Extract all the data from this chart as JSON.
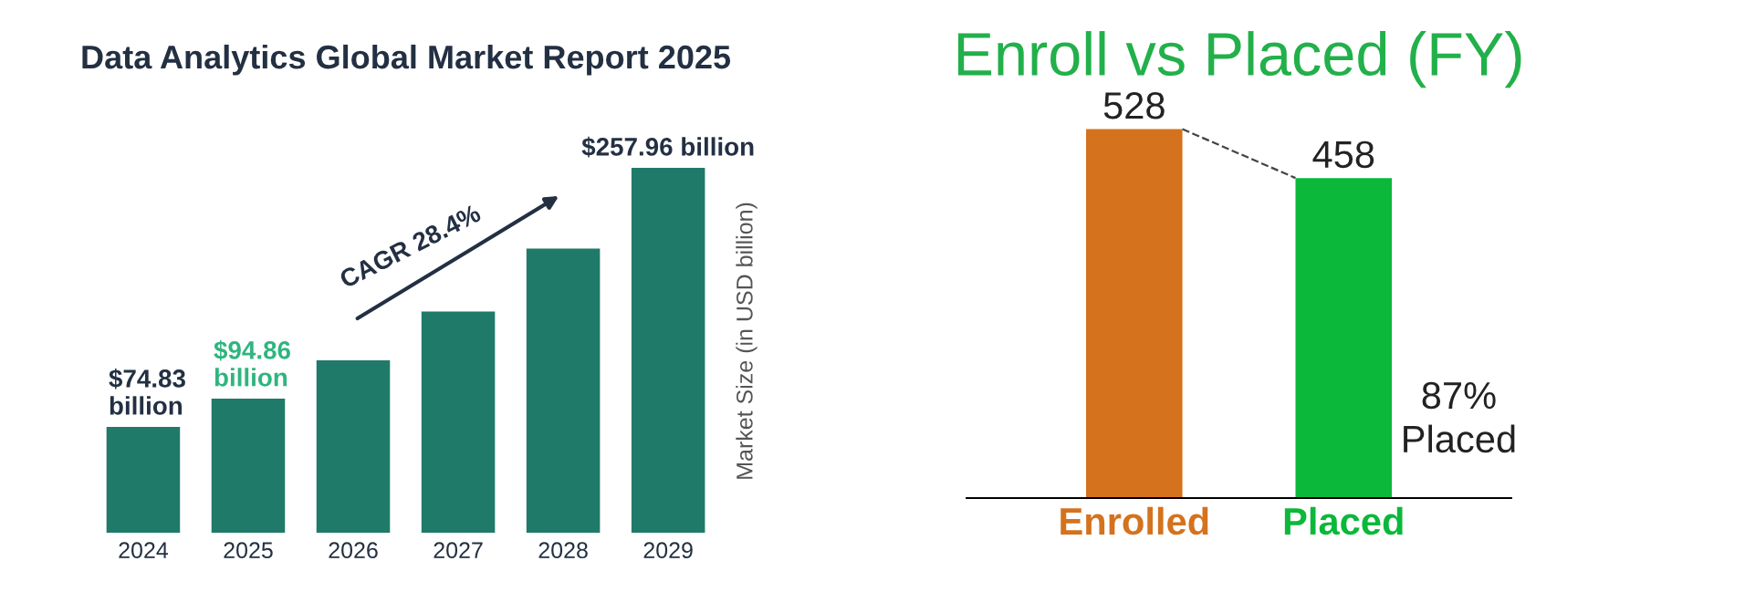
{
  "chart_data": [
    {
      "type": "bar",
      "title": "Data Analytics Global Market Report 2025",
      "ylabel": "Market Size (in USD billion)",
      "categories": [
        "2024",
        "2025",
        "2026",
        "2027",
        "2028",
        "2029"
      ],
      "values": [
        74.83,
        94.86,
        121.8,
        156.4,
        200.8,
        257.96
      ],
      "value_labels": [
        "$74.83 billion",
        "$94.86 billion",
        null,
        null,
        null,
        "$257.96 billion"
      ],
      "color": "#1f7a6a",
      "tick_labels": "x",
      "grid": false,
      "legend": false,
      "annotations": [
        "CAGR 28.4%"
      ]
    },
    {
      "type": "bar",
      "title": "Enroll vs Placed (FY)",
      "categories": [
        "Enrolled",
        "Placed"
      ],
      "values": [
        528,
        458
      ],
      "colors": [
        "#d4721e",
        "#0bb83a"
      ],
      "tick_labels": "x",
      "data_labels": true,
      "grid": false,
      "legend": false,
      "annotations": [
        "87%\nPlaced"
      ]
    }
  ]
}
